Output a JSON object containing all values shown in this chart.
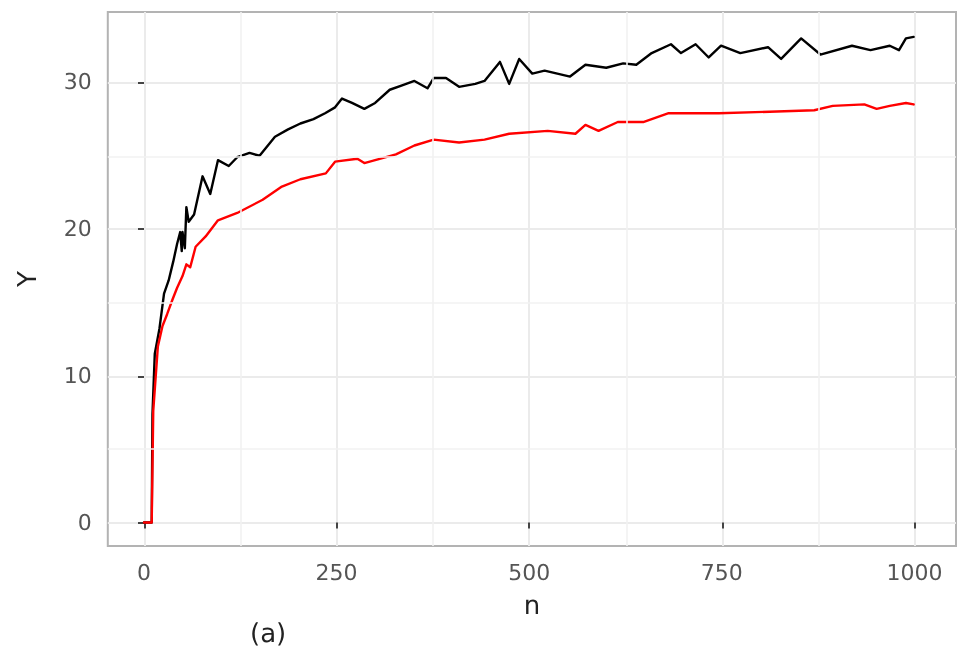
{
  "chart_data": {
    "type": "line",
    "xlabel": "n",
    "ylabel": "Y",
    "annotations": [
      "(a)"
    ],
    "xlim": [
      -47,
      1054
    ],
    "ylim": [
      -1.6,
      34.8
    ],
    "xticks": [
      0,
      {
        "value": 125,
        "label": null
      },
      250,
      {
        "value": 375,
        "label": null
      },
      500,
      {
        "value": 625,
        "label": null
      },
      750,
      {
        "value": 875,
        "label": null
      },
      1000
    ],
    "yticks": [
      0,
      {
        "value": 5,
        "label": null
      },
      10,
      {
        "value": 15,
        "label": null
      },
      20,
      {
        "value": 25,
        "label": null
      },
      30
    ],
    "grid": true,
    "marker": "none",
    "line_style": "solid",
    "series": [
      {
        "color": "#000000",
        "x": [
          0,
          10,
          11,
          14,
          20,
          26,
          32,
          38,
          43,
          47,
          49,
          50,
          53,
          55,
          58,
          65,
          76,
          86,
          96,
          110,
          121,
          137,
          150,
          170,
          187,
          203,
          220,
          235,
          248,
          257,
          270,
          286,
          300,
          319,
          335,
          351,
          368,
          376,
          392,
          409,
          430,
          442,
          462,
          474,
          487,
          504,
          520,
          553,
          573,
          600,
          622,
          639,
          659,
          684,
          697,
          716,
          733,
          749,
          774,
          810,
          827,
          853,
          878,
          919,
          943,
          968,
          980,
          989,
          999
        ],
        "values": [
          0,
          0,
          7.4,
          11.5,
          13.2,
          15.6,
          16.5,
          17.8,
          19,
          19.8,
          18.5,
          19.8,
          18.7,
          21.5,
          20.5,
          21,
          23.6,
          22.4,
          24.7,
          24.3,
          24.9,
          25.2,
          25,
          26.3,
          26.8,
          27.2,
          27.5,
          27.9,
          28.3,
          28.9,
          28.6,
          28.2,
          28.6,
          29.5,
          29.8,
          30.1,
          29.6,
          30.3,
          30.3,
          29.7,
          29.9,
          30.1,
          31.4,
          29.9,
          31.6,
          30.6,
          30.8,
          30.4,
          31.2,
          31,
          31.3,
          31.2,
          32,
          32.6,
          32,
          32.6,
          31.7,
          32.5,
          32,
          32.4,
          31.6,
          33,
          31.9,
          32.5,
          32.2,
          32.5,
          32.2,
          33,
          33.1
        ]
      },
      {
        "color": "#ff0000",
        "x": [
          0,
          10,
          12,
          18,
          24,
          30,
          37,
          43,
          50,
          55,
          60,
          67,
          80,
          96,
          121,
          154,
          179,
          203,
          236,
          248,
          277,
          286,
          327,
          351,
          376,
          409,
          442,
          474,
          524,
          560,
          573,
          590,
          615,
          648,
          681,
          746,
          812,
          870,
          894,
          935,
          951,
          968,
          989,
          999
        ],
        "values": [
          0,
          0,
          7.6,
          12,
          13.4,
          14.2,
          15.2,
          16,
          16.8,
          17.6,
          17.4,
          18.8,
          19.5,
          20.6,
          21.1,
          22,
          22.9,
          23.4,
          23.8,
          24.6,
          24.8,
          24.5,
          25.1,
          25.7,
          26.1,
          25.9,
          26.1,
          26.5,
          26.7,
          26.5,
          27.1,
          26.7,
          27.3,
          27.3,
          27.9,
          27.9,
          28,
          28.1,
          28.4,
          28.5,
          28.2,
          28.4,
          28.6,
          28.5
        ]
      }
    ]
  }
}
